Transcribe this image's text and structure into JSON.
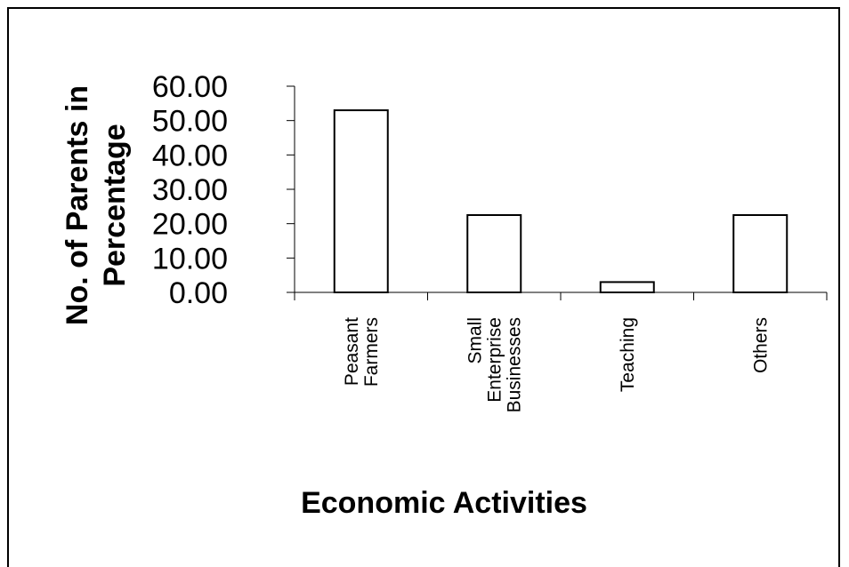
{
  "chart_data": {
    "type": "bar",
    "title": "",
    "xlabel": "Economic Activities",
    "ylabel_lines": [
      "No. of Parents in",
      "Percentage"
    ],
    "categories": [
      [
        "Peasant",
        "Farmers"
      ],
      [
        "Small",
        "Enterprise",
        "Businesses"
      ],
      [
        "Teaching"
      ],
      [
        "Others"
      ]
    ],
    "values": [
      53.0,
      22.5,
      3.0,
      22.5
    ],
    "ylim": [
      0,
      60
    ],
    "yticks": [
      "0.00",
      "10.00",
      "20.00",
      "30.00",
      "40.00",
      "50.00",
      "60.00"
    ],
    "grid": false,
    "legend": "none",
    "bar_fill": "#ffffff",
    "bar_stroke": "#000000"
  }
}
